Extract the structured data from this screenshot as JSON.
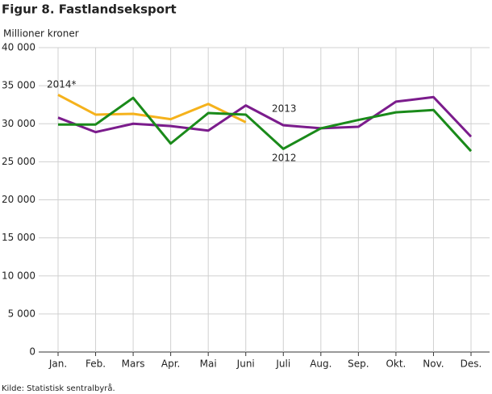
{
  "chart_data": {
    "type": "line",
    "title": "Figur 8. Fastlandseksport",
    "y_axis_label": "Millioner kroner",
    "source": "Kilde: Statistisk sentralbyrå.",
    "categories": [
      "Jan.",
      "Feb.",
      "Mars",
      "Apr.",
      "Mai",
      "Juni",
      "Juli",
      "Aug.",
      "Sep.",
      "Okt.",
      "Nov.",
      "Des."
    ],
    "series": [
      {
        "name": "2014*",
        "color": "#f5b21c",
        "values": [
          33800,
          31200,
          31300,
          30600,
          32600,
          30200,
          null,
          null,
          null,
          null,
          null,
          null
        ]
      },
      {
        "name": "2013",
        "color": "#7b1c8c",
        "values": [
          30800,
          28900,
          30000,
          29700,
          29100,
          32400,
          29800,
          29400,
          29600,
          32900,
          33500,
          28300
        ]
      },
      {
        "name": "2012",
        "color": "#1a8a1a",
        "values": [
          29900,
          29900,
          33400,
          27400,
          31400,
          31200,
          26700,
          29400,
          30500,
          31500,
          31800,
          26400
        ]
      }
    ],
    "ylim": [
      0,
      40000
    ],
    "yticks": [
      {
        "value": 0,
        "label": "0"
      },
      {
        "value": 5000,
        "label": "5 000"
      },
      {
        "value": 10000,
        "label": "10 000"
      },
      {
        "value": 15000,
        "label": "15 000"
      },
      {
        "value": 20000,
        "label": "20 000"
      },
      {
        "value": 25000,
        "label": "25 000"
      },
      {
        "value": 30000,
        "label": "30 000"
      },
      {
        "value": 35000,
        "label": "35 000"
      },
      {
        "value": 40000,
        "label": "40 000"
      }
    ],
    "grid": true
  }
}
